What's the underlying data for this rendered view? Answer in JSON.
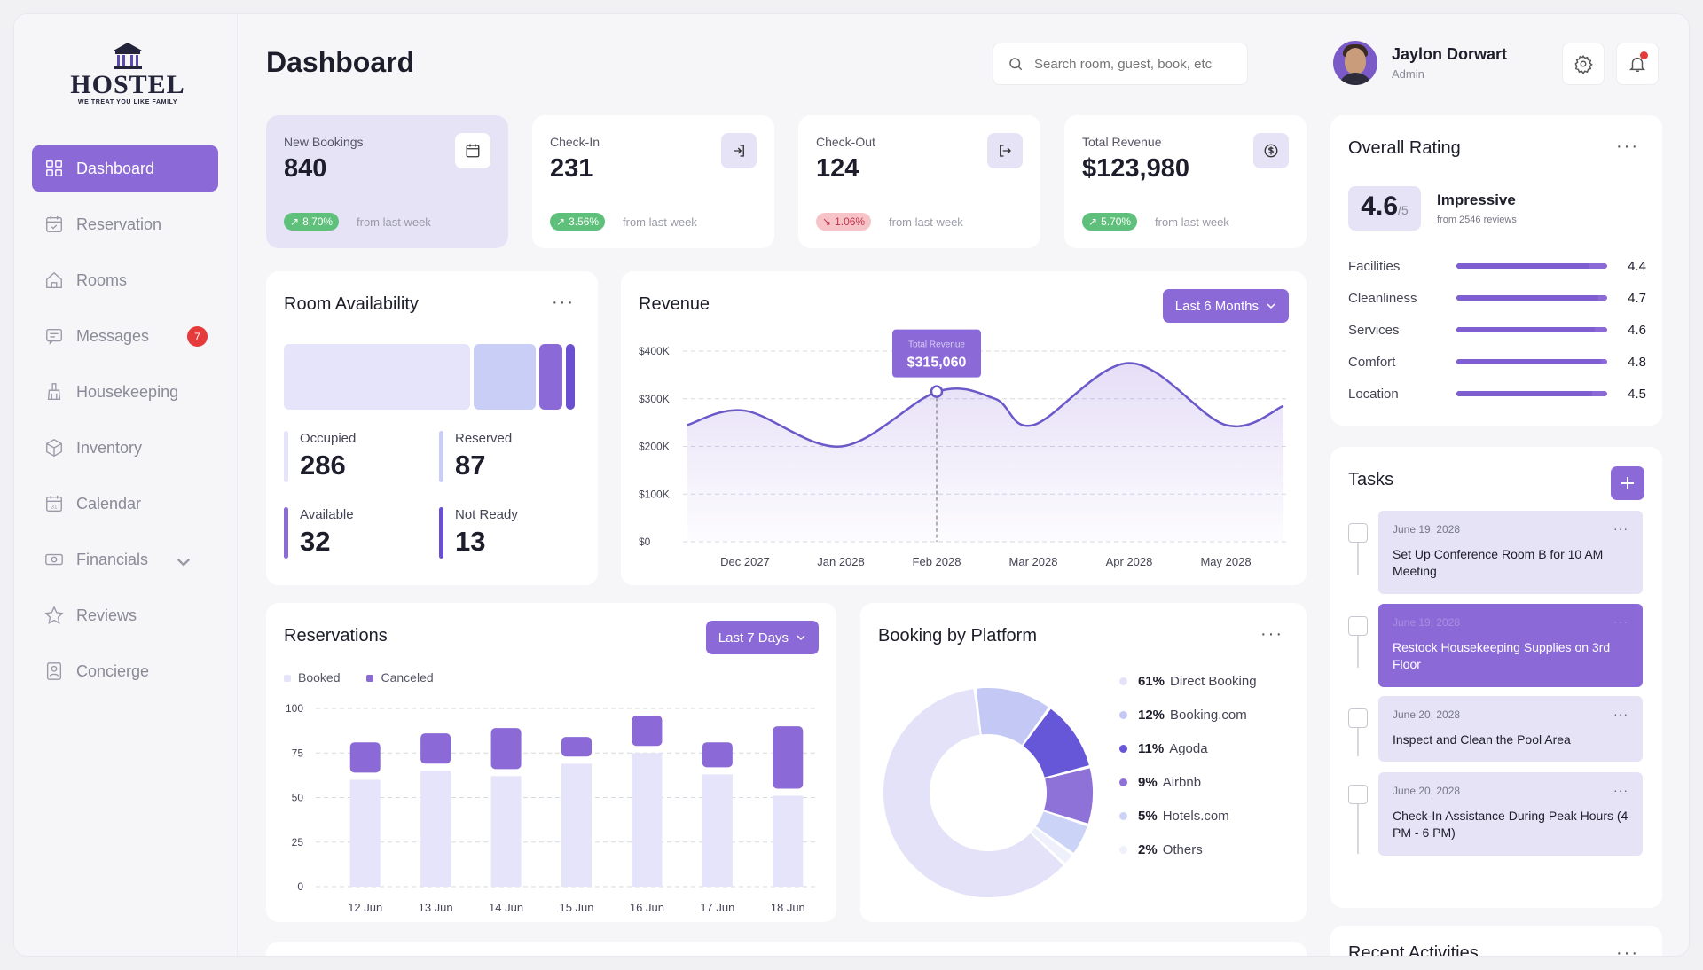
{
  "brand": {
    "name": "HOSTEL",
    "tagline": "WE TREAT YOU LIKE FAMILY"
  },
  "sidebar": {
    "items": [
      {
        "label": "Dashboard",
        "icon": "grid-icon",
        "active": true
      },
      {
        "label": "Reservation",
        "icon": "calendar-check-icon"
      },
      {
        "label": "Rooms",
        "icon": "home-icon"
      },
      {
        "label": "Messages",
        "icon": "message-icon",
        "badge": "7"
      },
      {
        "label": "Housekeeping",
        "icon": "broom-icon"
      },
      {
        "label": "Inventory",
        "icon": "box-icon"
      },
      {
        "label": "Calendar",
        "icon": "calendar-icon"
      },
      {
        "label": "Financials",
        "icon": "cash-icon",
        "dropdown": true
      },
      {
        "label": "Reviews",
        "icon": "star-icon"
      },
      {
        "label": "Concierge",
        "icon": "concierge-icon"
      }
    ]
  },
  "header": {
    "title": "Dashboard",
    "search_placeholder": "Search room, guest, book, etc",
    "user_name": "Jaylon Dorwart",
    "user_role": "Admin"
  },
  "stats": [
    {
      "label": "New Bookings",
      "value": "840",
      "change": "8.70%",
      "direction": "up",
      "from": "from last week",
      "icon": "calendar-icon"
    },
    {
      "label": "Check-In",
      "value": "231",
      "change": "3.56%",
      "direction": "up",
      "from": "from last week",
      "icon": "login-icon"
    },
    {
      "label": "Check-Out",
      "value": "124",
      "change": "1.06%",
      "direction": "down",
      "from": "from last week",
      "icon": "logout-icon"
    },
    {
      "label": "Total Revenue",
      "value": "$123,980",
      "change": "5.70%",
      "direction": "up",
      "from": "from last week",
      "icon": "dollar-icon"
    }
  ],
  "room_availability": {
    "title": "Room Availability",
    "items": [
      {
        "label": "Occupied",
        "value": "286"
      },
      {
        "label": "Reserved",
        "value": "87"
      },
      {
        "label": "Available",
        "value": "32"
      },
      {
        "label": "Not Ready",
        "value": "13"
      }
    ]
  },
  "revenue": {
    "title": "Revenue",
    "filter": "Last 6 Months",
    "tooltip_label": "Total Revenue",
    "tooltip_value": "$315,060"
  },
  "reservations": {
    "title": "Reservations",
    "filter": "Last 7 Days",
    "legend": [
      "Booked",
      "Canceled"
    ]
  },
  "booking_platform": {
    "title": "Booking by Platform",
    "items": [
      {
        "pct": "61%",
        "name": "Direct Booking",
        "value": 61,
        "color": "#e4e2f8"
      },
      {
        "pct": "12%",
        "name": "Booking.com",
        "value": 12,
        "color": "#c4c8f4"
      },
      {
        "pct": "11%",
        "name": "Agoda",
        "value": 11,
        "color": "#6656d8"
      },
      {
        "pct": "9%",
        "name": "Airbnb",
        "value": 9,
        "color": "#8e72d8"
      },
      {
        "pct": "5%",
        "name": "Hotels.com",
        "value": 5,
        "color": "#cbd3f6"
      },
      {
        "pct": "2%",
        "name": "Others",
        "value": 2,
        "color": "#eef0fb"
      }
    ]
  },
  "rating": {
    "title": "Overall Rating",
    "score": "4.6",
    "out_of": "/5",
    "verdict": "Impressive",
    "reviews": "from 2546 reviews",
    "items": [
      {
        "label": "Facilities",
        "value": "4.4",
        "score": 4.4
      },
      {
        "label": "Cleanliness",
        "value": "4.7",
        "score": 4.7
      },
      {
        "label": "Services",
        "value": "4.6",
        "score": 4.6
      },
      {
        "label": "Comfort",
        "value": "4.8",
        "score": 4.8
      },
      {
        "label": "Location",
        "value": "4.5",
        "score": 4.5
      }
    ]
  },
  "tasks": {
    "title": "Tasks",
    "items": [
      {
        "date": "June 19, 2028",
        "text": "Set Up Conference Room B for 10 AM Meeting"
      },
      {
        "date": "June 19, 2028",
        "text": "Restock Housekeeping Supplies on 3rd Floor",
        "active": true
      },
      {
        "date": "June 20, 2028",
        "text": "Inspect and Clean the Pool Area"
      },
      {
        "date": "June 20, 2028",
        "text": "Check-In Assistance During Peak Hours (4 PM - 6 PM)"
      }
    ]
  },
  "recent_activities": {
    "title": "Recent Activities"
  },
  "chart_data": [
    {
      "type": "line",
      "title": "Revenue",
      "x": [
        "Dec 2027",
        "Jan 2028",
        "Feb 2028",
        "Mar 2028",
        "Apr 2028",
        "May 2028"
      ],
      "y_ticks": [
        "$0",
        "$100K",
        "$200K",
        "$300K",
        "$400K"
      ],
      "ylim": [
        0,
        400000
      ],
      "points": [
        [
          -0.6,
          245000
        ],
        [
          0,
          275000
        ],
        [
          1,
          200000
        ],
        [
          2,
          315060
        ],
        [
          2.6,
          300000
        ],
        [
          3,
          245000
        ],
        [
          4,
          375000
        ],
        [
          5,
          245000
        ],
        [
          5.6,
          285000
        ]
      ],
      "highlight": {
        "x": "Feb 2028",
        "value": 315060
      }
    },
    {
      "type": "bar",
      "title": "Reservations",
      "categories": [
        "12 Jun",
        "13 Jun",
        "14 Jun",
        "15 Jun",
        "16 Jun",
        "17 Jun",
        "18 Jun"
      ],
      "ylim": [
        0,
        100
      ],
      "y_ticks": [
        0,
        25,
        50,
        75,
        100
      ],
      "series": [
        {
          "name": "Booked",
          "values": [
            60,
            65,
            62,
            69,
            75,
            63,
            51
          ],
          "color": "#e6e4fa"
        },
        {
          "name": "Canceled",
          "values": [
            17,
            17,
            23,
            11,
            17,
            14,
            35
          ],
          "color": "#8b6ad8"
        }
      ]
    },
    {
      "type": "pie",
      "title": "Booking by Platform",
      "labels": [
        "Direct Booking",
        "Booking.com",
        "Agoda",
        "Airbnb",
        "Hotels.com",
        "Others"
      ],
      "values": [
        61,
        12,
        11,
        9,
        5,
        2
      ]
    }
  ]
}
